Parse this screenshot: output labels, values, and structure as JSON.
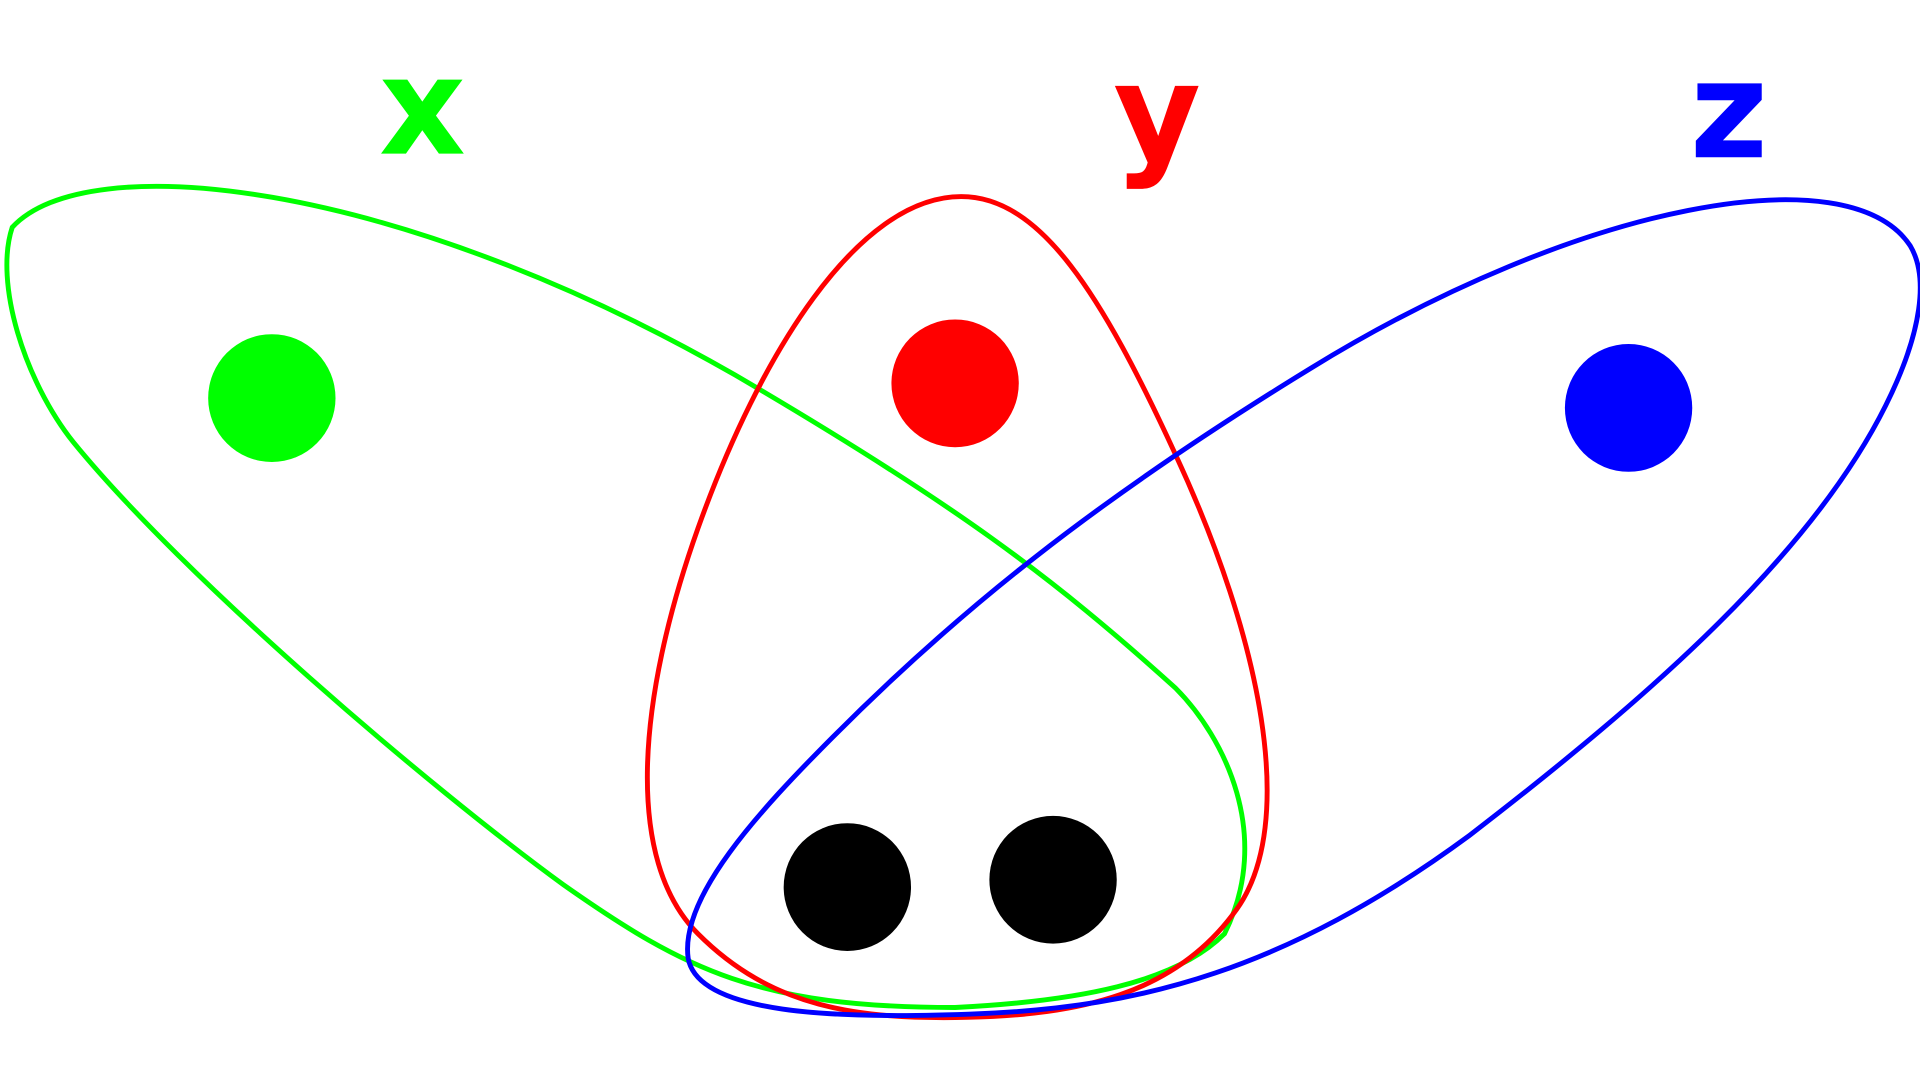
{
  "diagram": {
    "labels": {
      "x": "x",
      "y": "y",
      "z": "z"
    },
    "colors": {
      "x": "#00ff00",
      "y": "#ff0000",
      "z": "#0000ff",
      "shared": "#000000",
      "background": "#ffffff"
    },
    "sets": [
      {
        "label": "x",
        "color": "#00ff00",
        "exclusive_elements": 1
      },
      {
        "label": "y",
        "color": "#ff0000",
        "exclusive_elements": 1
      },
      {
        "label": "z",
        "color": "#0000ff",
        "exclusive_elements": 1
      }
    ],
    "shared_elements_xyz": 2
  }
}
